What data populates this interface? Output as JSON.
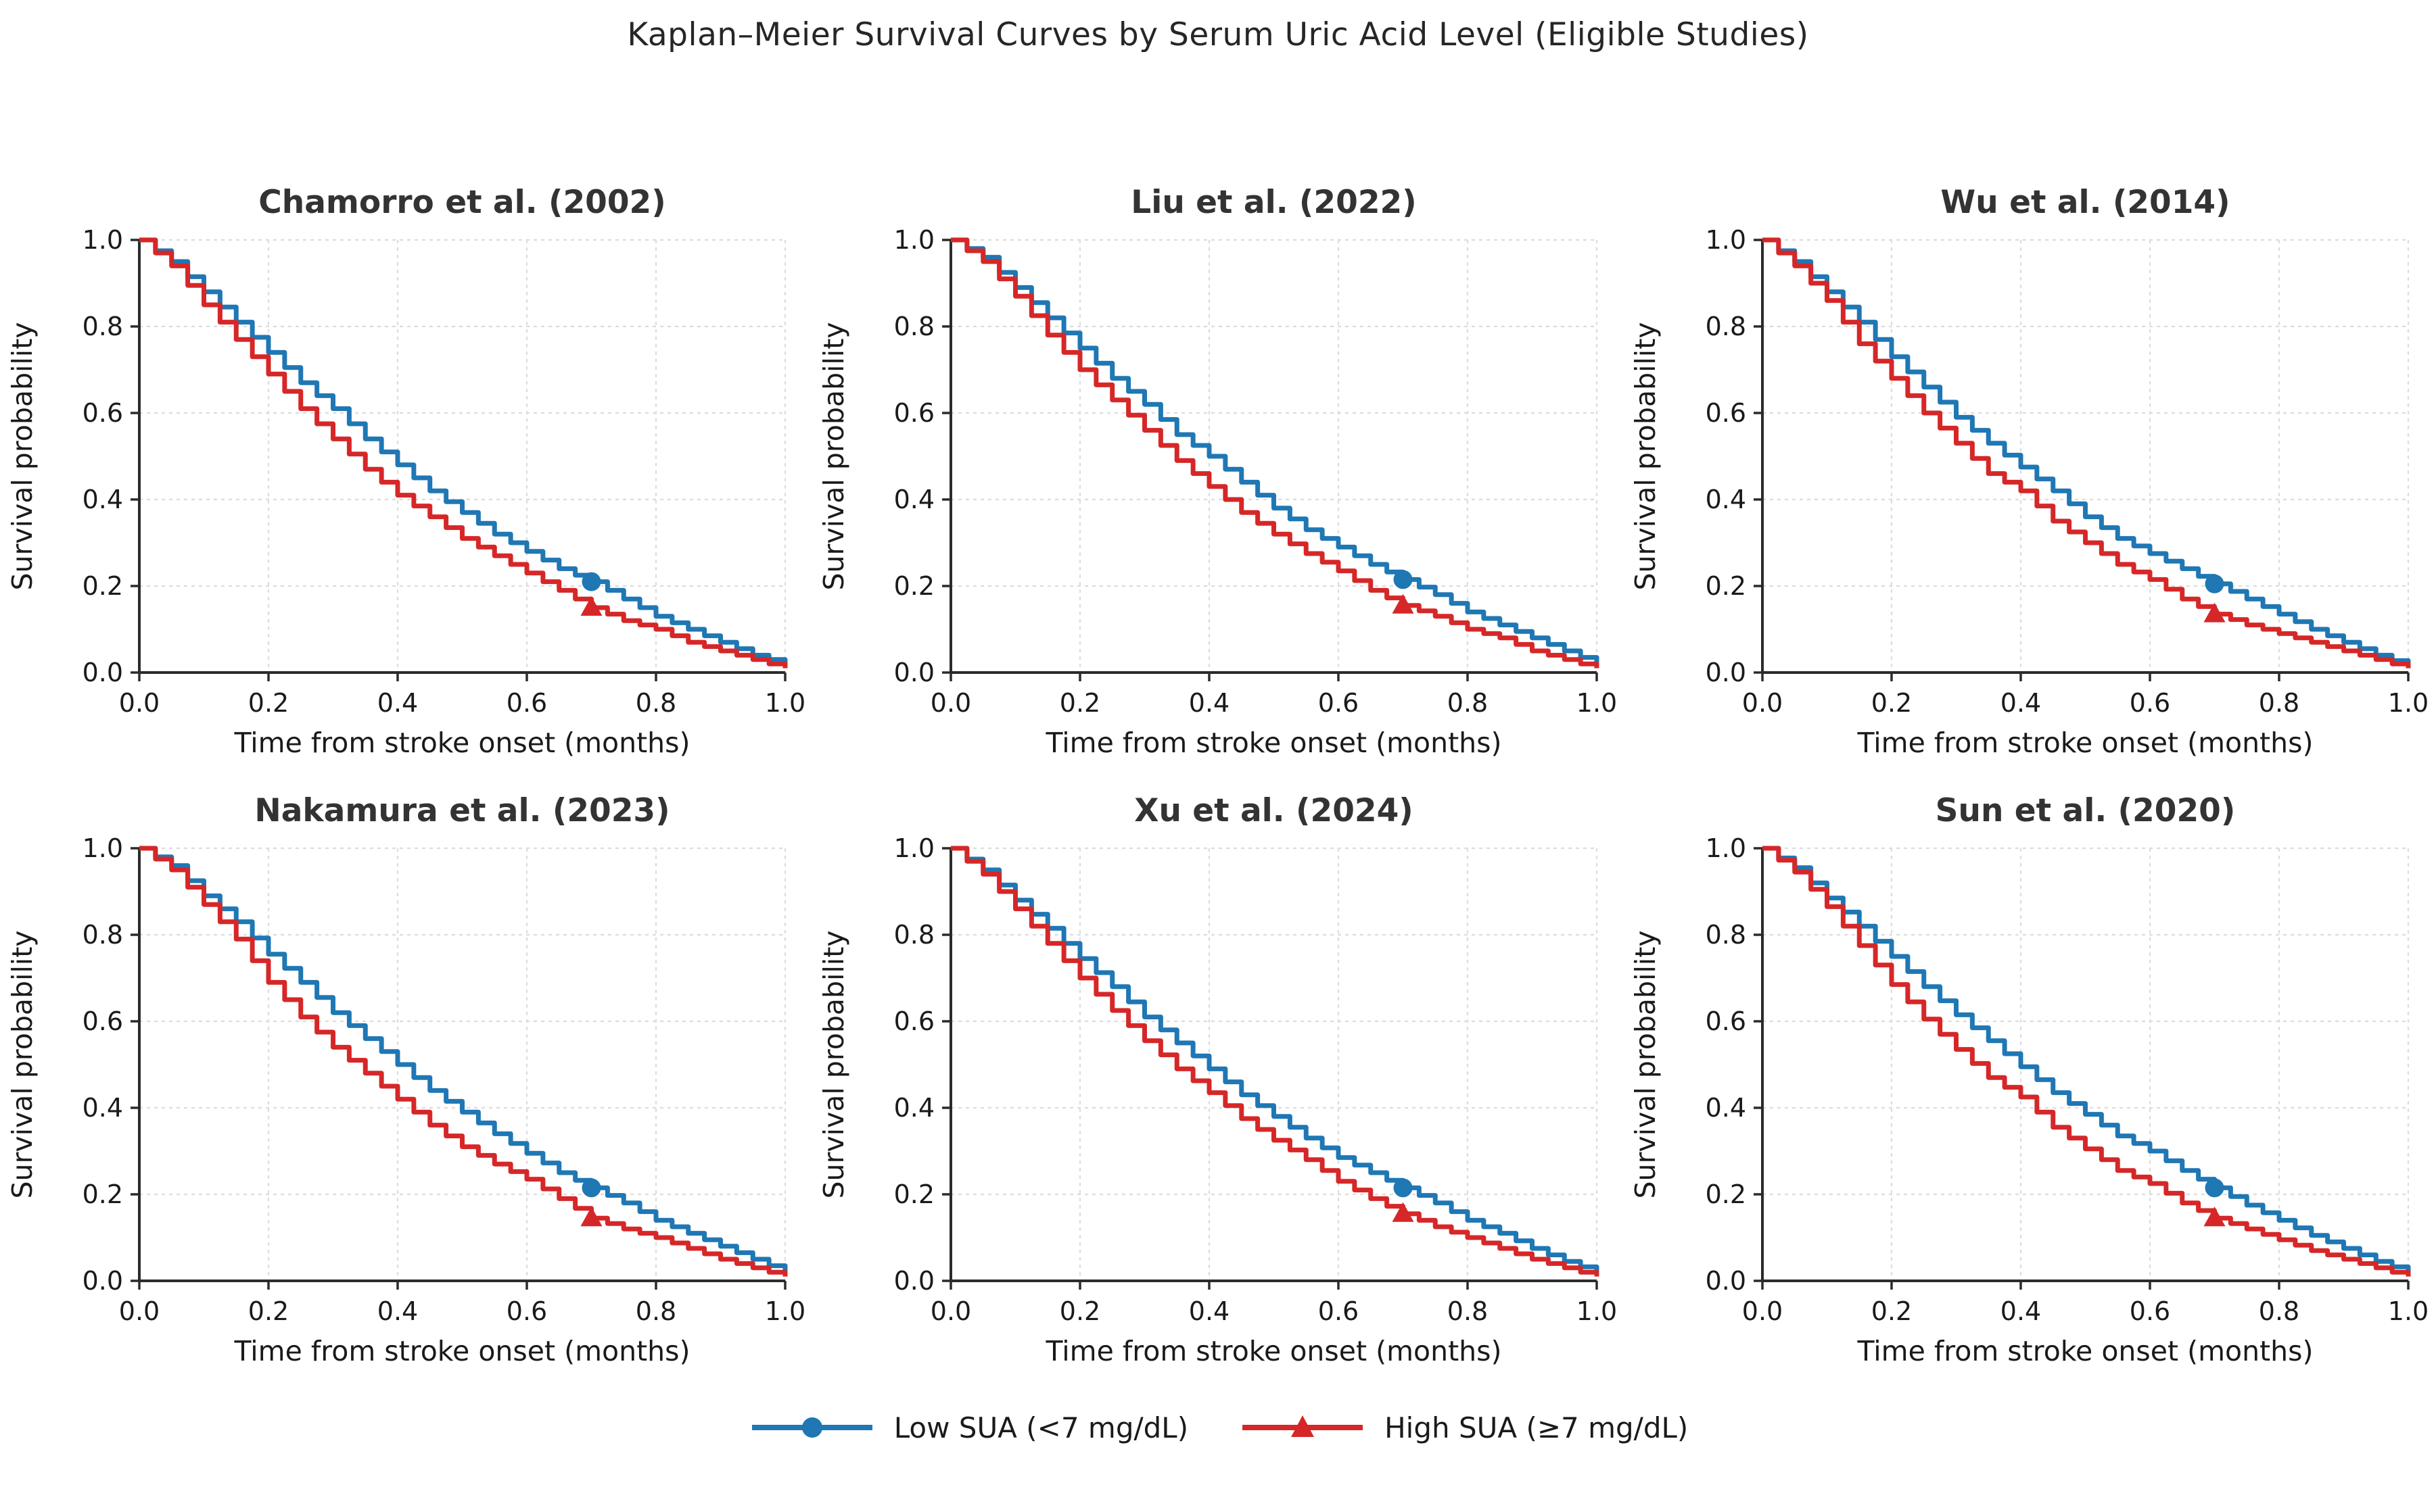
{
  "figure": {
    "suptitle": "Kaplan–Meier Survival Curves by Serum Uric Acid Level (Eligible Studies)"
  },
  "colors": {
    "low_sua": "#1f77b4",
    "high_sua": "#d62728",
    "grid": "#dcdcdc",
    "spine": "#2b2b2b",
    "tick_text": "#1a1a1a",
    "title_text": "#262626",
    "subplot_title_text": "#333333"
  },
  "chart_data": {
    "type": "line",
    "subtype": "kaplan-meier-step",
    "layout": "2 rows x 3 columns of subplots, shared styling",
    "grid": "dashed light gray at every tick",
    "legend_position": "bottom center, no frame",
    "xlabel": "Time from stroke onset (months)",
    "ylabel": "Survival probability",
    "xlim": [
      0.0,
      1.0
    ],
    "ylim": [
      0.0,
      1.0
    ],
    "xticks": [
      0.0,
      0.2,
      0.4,
      0.6,
      0.8,
      1.0
    ],
    "yticks": [
      0.0,
      0.2,
      0.4,
      0.6,
      0.8,
      1.0
    ],
    "xtick_labels": [
      "0.0",
      "0.2",
      "0.4",
      "0.6",
      "0.8",
      "1.0"
    ],
    "ytick_labels": [
      "0.0",
      "0.2",
      "0.4",
      "0.6",
      "0.8",
      "1.0"
    ],
    "marker_at_x": 0.7,
    "x": [
      0.0,
      0.05,
      0.1,
      0.15,
      0.2,
      0.25,
      0.3,
      0.35,
      0.4,
      0.45,
      0.5,
      0.55,
      0.6,
      0.65,
      0.7,
      0.75,
      0.8,
      0.85,
      0.9,
      0.95,
      1.0
    ],
    "legend": {
      "entries": [
        {
          "label": "Low SUA (<7 mg/dL)",
          "color": "#1f77b4",
          "marker": "circle"
        },
        {
          "label": "High SUA (≥7 mg/dL)",
          "color": "#d62728",
          "marker": "triangle-up"
        }
      ]
    },
    "subplots": [
      {
        "title": "Chamorro et al. (2002)",
        "series": [
          {
            "name": "Low SUA (<7 mg/dL)",
            "key": "low",
            "values": [
              1.0,
              0.95,
              0.88,
              0.81,
              0.74,
              0.67,
              0.61,
              0.54,
              0.48,
              0.42,
              0.37,
              0.32,
              0.28,
              0.24,
              0.21,
              0.17,
              0.13,
              0.1,
              0.07,
              0.04,
              0.02
            ]
          },
          {
            "name": "High SUA (≥7 mg/dL)",
            "key": "high",
            "values": [
              1.0,
              0.94,
              0.85,
              0.77,
              0.69,
              0.61,
              0.54,
              0.47,
              0.41,
              0.36,
              0.31,
              0.27,
              0.23,
              0.19,
              0.15,
              0.12,
              0.1,
              0.07,
              0.05,
              0.03,
              0.01
            ]
          }
        ]
      },
      {
        "title": "Liu et al. (2022)",
        "series": [
          {
            "name": "Low SUA (<7 mg/dL)",
            "key": "low",
            "values": [
              1.0,
              0.96,
              0.89,
              0.82,
              0.75,
              0.68,
              0.62,
              0.55,
              0.5,
              0.44,
              0.38,
              0.33,
              0.29,
              0.25,
              0.215,
              0.18,
              0.14,
              0.11,
              0.08,
              0.05,
              0.02
            ]
          },
          {
            "name": "High SUA (≥7 mg/dL)",
            "key": "high",
            "values": [
              1.0,
              0.95,
              0.87,
              0.78,
              0.7,
              0.63,
              0.56,
              0.49,
              0.43,
              0.37,
              0.32,
              0.275,
              0.235,
              0.19,
              0.155,
              0.13,
              0.1,
              0.08,
              0.05,
              0.03,
              0.01
            ]
          }
        ]
      },
      {
        "title": "Wu et al. (2014)",
        "series": [
          {
            "name": "Low SUA (<7 mg/dL)",
            "key": "low",
            "values": [
              1.0,
              0.95,
              0.88,
              0.81,
              0.73,
              0.66,
              0.59,
              0.53,
              0.475,
              0.42,
              0.36,
              0.31,
              0.275,
              0.24,
              0.205,
              0.17,
              0.135,
              0.1,
              0.07,
              0.04,
              0.015
            ]
          },
          {
            "name": "High SUA (≥7 mg/dL)",
            "key": "high",
            "values": [
              1.0,
              0.94,
              0.86,
              0.76,
              0.68,
              0.6,
              0.53,
              0.46,
              0.42,
              0.35,
              0.3,
              0.25,
              0.215,
              0.17,
              0.135,
              0.11,
              0.09,
              0.07,
              0.05,
              0.03,
              0.01
            ]
          }
        ]
      },
      {
        "title": "Nakamura et al. (2023)",
        "series": [
          {
            "name": "Low SUA (<7 mg/dL)",
            "key": "low",
            "values": [
              1.0,
              0.96,
              0.89,
              0.83,
              0.755,
              0.69,
              0.62,
              0.56,
              0.5,
              0.44,
              0.39,
              0.34,
              0.295,
              0.25,
              0.215,
              0.18,
              0.14,
              0.11,
              0.08,
              0.05,
              0.02
            ]
          },
          {
            "name": "High SUA (≥7 mg/dL)",
            "key": "high",
            "values": [
              1.0,
              0.95,
              0.87,
              0.79,
              0.69,
              0.61,
              0.54,
              0.48,
              0.42,
              0.36,
              0.31,
              0.27,
              0.235,
              0.19,
              0.145,
              0.12,
              0.1,
              0.075,
              0.05,
              0.03,
              0.01
            ]
          }
        ]
      },
      {
        "title": "Xu et al. (2024)",
        "series": [
          {
            "name": "Low SUA (<7 mg/dL)",
            "key": "low",
            "values": [
              1.0,
              0.95,
              0.88,
              0.815,
              0.745,
              0.68,
              0.61,
              0.55,
              0.49,
              0.43,
              0.38,
              0.33,
              0.285,
              0.25,
              0.215,
              0.18,
              0.14,
              0.11,
              0.075,
              0.045,
              0.02
            ]
          },
          {
            "name": "High SUA (≥7 mg/dL)",
            "key": "high",
            "values": [
              1.0,
              0.94,
              0.86,
              0.78,
              0.7,
              0.625,
              0.555,
              0.49,
              0.435,
              0.375,
              0.325,
              0.28,
              0.23,
              0.19,
              0.155,
              0.125,
              0.1,
              0.075,
              0.05,
              0.03,
              0.01
            ]
          }
        ]
      },
      {
        "title": "Sun et al. (2020)",
        "series": [
          {
            "name": "Low SUA (<7 mg/dL)",
            "key": "low",
            "values": [
              1.0,
              0.955,
              0.885,
              0.82,
              0.75,
              0.68,
              0.615,
              0.555,
              0.495,
              0.435,
              0.385,
              0.335,
              0.3,
              0.255,
              0.215,
              0.175,
              0.14,
              0.105,
              0.075,
              0.045,
              0.02
            ]
          },
          {
            "name": "High SUA (≥7 mg/dL)",
            "key": "high",
            "values": [
              1.0,
              0.945,
              0.865,
              0.775,
              0.685,
              0.605,
              0.535,
              0.47,
              0.425,
              0.355,
              0.305,
              0.255,
              0.225,
              0.18,
              0.145,
              0.12,
              0.095,
              0.07,
              0.05,
              0.03,
              0.01
            ]
          }
        ]
      }
    ]
  }
}
